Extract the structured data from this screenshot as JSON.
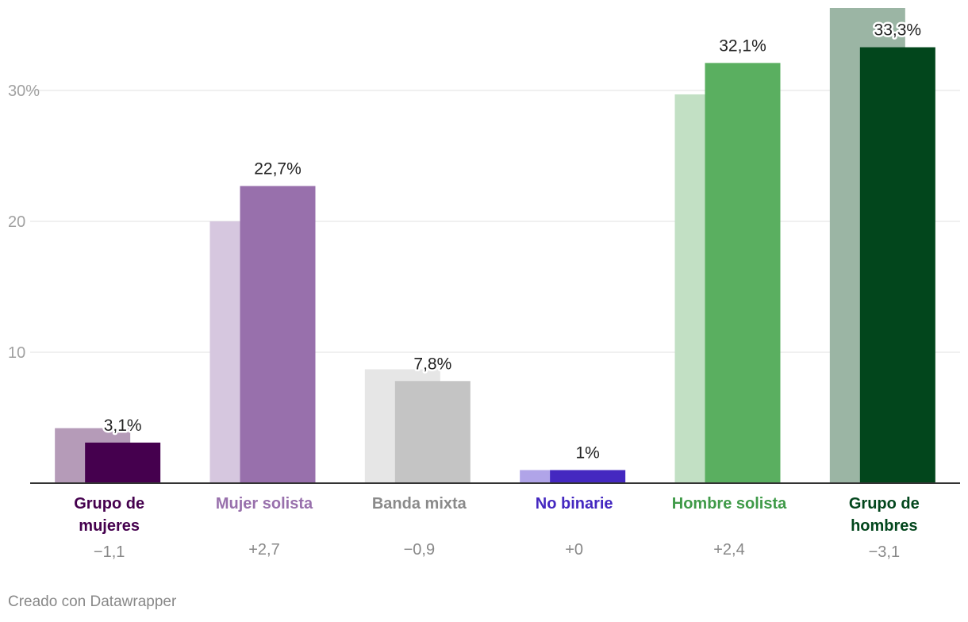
{
  "chart_data": {
    "type": "bar",
    "title": "",
    "xlabel": "",
    "ylabel": "",
    "ylim": [
      0,
      36
    ],
    "y_ticks": [
      10,
      20,
      30
    ],
    "y_tick_labels": [
      "10",
      "20",
      "30%"
    ],
    "grid": true,
    "categories": [
      {
        "name": "Grupo de mujeres",
        "lines": [
          "Grupo de",
          "mujeres"
        ],
        "color": "#45004e",
        "prev_color": "#b59bb8"
      },
      {
        "name": "Mujer solista",
        "lines": [
          "Mujer solista"
        ],
        "color": "#9870ac",
        "prev_color": "#d6c7df"
      },
      {
        "name": "Banda mixta",
        "lines": [
          "Banda mixta"
        ],
        "color": "#c4c4c4",
        "prev_color": "#e6e6e6",
        "label_color": "#8a8a8a"
      },
      {
        "name": "No binarie",
        "lines": [
          "No binarie"
        ],
        "color": "#4428c0",
        "prev_color": "#b0a4e8"
      },
      {
        "name": "Hombre solista",
        "lines": [
          "Hombre solista"
        ],
        "color": "#5aaf60",
        "prev_color": "#c2e0c4",
        "label_color": "#3f9a48"
      },
      {
        "name": "Grupo de hombres",
        "lines": [
          "Grupo de",
          "hombres"
        ],
        "color": "#02461c",
        "prev_color": "#9bb5a4"
      }
    ],
    "series": [
      {
        "name": "previous",
        "values": [
          4.2,
          20.0,
          8.7,
          1.0,
          29.7,
          36.4
        ]
      },
      {
        "name": "current",
        "values": [
          3.1,
          22.7,
          7.8,
          1.0,
          32.1,
          33.3
        ]
      }
    ],
    "value_labels": [
      "3,1%",
      "22,7%",
      "7,8%",
      "1%",
      "32,1%",
      "33,3%"
    ],
    "changes": [
      "−1,1",
      "+2,7",
      "−0,9",
      "+0",
      "+2,4",
      "−3,1"
    ]
  },
  "footer": {
    "credit": "Creado con Datawrapper"
  }
}
